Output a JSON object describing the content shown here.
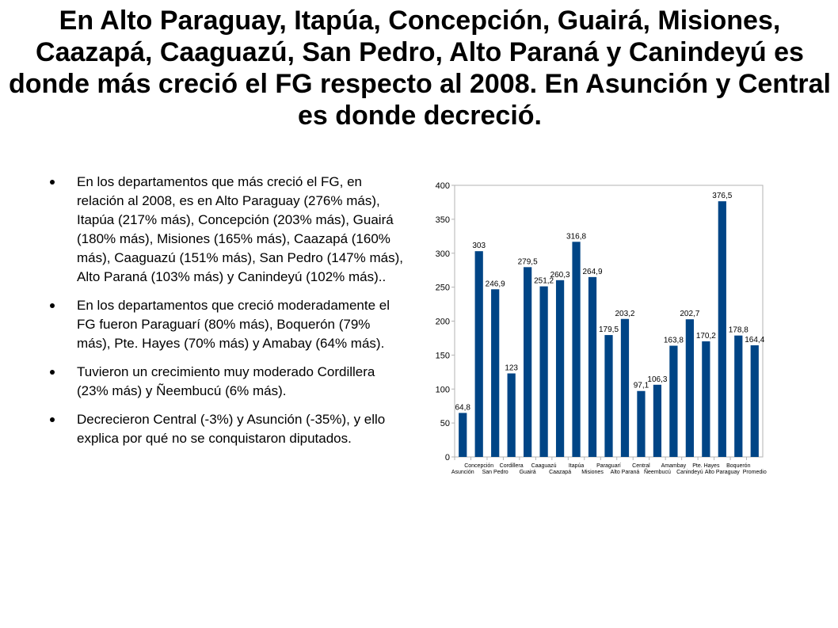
{
  "title": "En Alto Paraguay, Itapúa, Concepción, Guairá, Misiones, Caazapá, Caaguazú, San Pedro, Alto Paraná y Canindeyú es donde más creció el FG respecto al 2008. En Asunción y Central es donde decreció.",
  "bullets": [
    "En los departamentos que más creció el FG, en relación al 2008, es en Alto Paraguay (276% más), Itapúa (217% más), Concepción (203% más), Guairá (180% más), Misiones (165% más), Caazapá (160% más), Caaguazú (151% más), San Pedro (147% más), Alto Paraná (103% más) y Canindeyú (102% más)..",
    "En los departamentos que creció moderadamente el FG fueron Paraguarí (80% más), Boquerón (79% más), Pte. Hayes (70% más) y Amabay (64% más).",
    "Tuvieron un crecimiento muy moderado Cordillera (23% más) y Ñeembucú (6% más).",
    "Decrecieron Central (-3%) y Asunción (-35%), y ello explica por qué no se conquistaron diputados."
  ],
  "chart_data": {
    "type": "bar",
    "categories": [
      "Asunción",
      "Concepción",
      "San Pedro",
      "Cordillera",
      "Guairá",
      "Caaguazú",
      "Caazapá",
      "Itapúa",
      "Misiones",
      "Paraguarí",
      "Alto Paraná",
      "Central",
      "Ñeembucú",
      "Amambay",
      "Canindeyú",
      "Pte. Hayes",
      "Alto Paraguay",
      "Boquerón",
      "Promedio"
    ],
    "tick_labels": [
      "Asunción",
      "Concepción",
      "San Pedro",
      "Cordillera",
      "Guairá",
      "Caaguazú",
      "Caazapá",
      "Itapúa",
      "Misiones",
      "Paraguarí",
      "Alto Paraná",
      "Central",
      "Ñeembucú",
      "Amambay",
      "Canindeyú",
      "Pte. Hayes",
      "Alto Paraguay",
      "Boquerón",
      "Promedio"
    ],
    "values": [
      64.8,
      303,
      246.9,
      123,
      279.5,
      251.2,
      260.3,
      316.8,
      264.9,
      179.5,
      203.2,
      97.1,
      106.3,
      163.8,
      202.7,
      170.2,
      376.5,
      178.8,
      164.4
    ],
    "value_labels": [
      "64,8",
      "303",
      "246,9",
      "123",
      "279,5",
      "251,2",
      "260,3",
      "316,8",
      "264,9",
      "179,5",
      "203,2",
      "97,1",
      "106,3",
      "163,8",
      "202,7",
      "170,2",
      "376,5",
      "178,8",
      "164,4"
    ],
    "yticks": [
      "0",
      "50",
      "100",
      "150",
      "200",
      "250",
      "300",
      "350",
      "400"
    ],
    "ylim": [
      0,
      400
    ],
    "grid": false,
    "legend": false,
    "bar_color": "#004586",
    "title": "",
    "xlabel": "",
    "ylabel": ""
  }
}
